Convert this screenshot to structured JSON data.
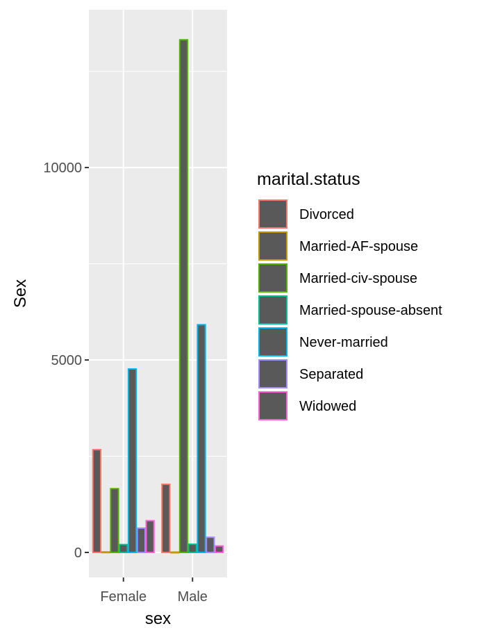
{
  "chart_data": {
    "type": "bar",
    "xlabel": "sex",
    "ylabel": "Sex",
    "categories": [
      "Female",
      "Male"
    ],
    "y_ticks": [
      "0",
      "5000",
      "10000"
    ],
    "y_tick_values": [
      0,
      5000,
      10000
    ],
    "ylim": [
      -650,
      14100
    ],
    "grid": true,
    "bar_fill": "#595959",
    "panel_bg": "#ebebeb",
    "legend": {
      "title": "marital.status",
      "placement": "right"
    },
    "series": [
      {
        "name": "Divorced",
        "color": "#F8766D",
        "values": [
          2670,
          1771
        ]
      },
      {
        "name": "Married-AF-spouse",
        "color": "#C49A00",
        "values": [
          14,
          9
        ]
      },
      {
        "name": "Married-civ-spouse",
        "color": "#53B400",
        "values": [
          1657,
          13319
        ]
      },
      {
        "name": "Married-spouse-absent",
        "color": "#00C094",
        "values": [
          205,
          213
        ]
      },
      {
        "name": "Never-married",
        "color": "#00B6EB",
        "values": [
          4767,
          5916
        ]
      },
      {
        "name": "Separated",
        "color": "#A58AFF",
        "values": [
          631,
          394
        ]
      },
      {
        "name": "Widowed",
        "color": "#FB61D7",
        "values": [
          825,
          168
        ]
      }
    ]
  }
}
